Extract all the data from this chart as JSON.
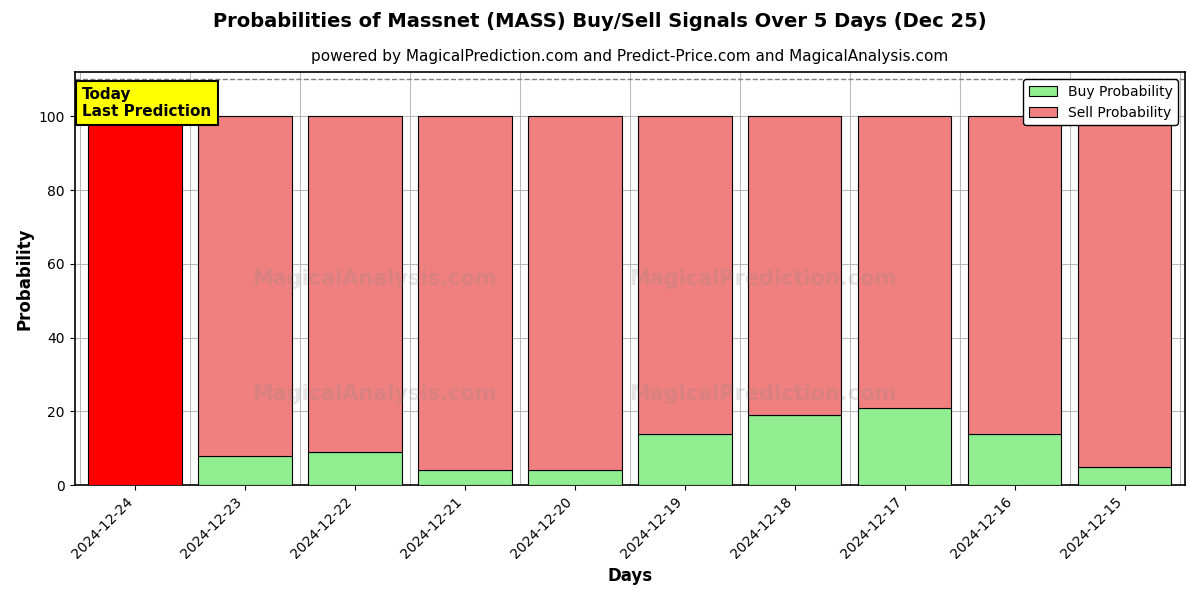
{
  "title": "Probabilities of Massnet (MASS) Buy/Sell Signals Over 5 Days (Dec 25)",
  "subtitle": "powered by MagicalPrediction.com and Predict-Price.com and MagicalAnalysis.com",
  "xlabel": "Days",
  "ylabel": "Probability",
  "categories": [
    "2024-12-24",
    "2024-12-23",
    "2024-12-22",
    "2024-12-21",
    "2024-12-20",
    "2024-12-19",
    "2024-12-18",
    "2024-12-17",
    "2024-12-16",
    "2024-12-15"
  ],
  "buy_values": [
    0,
    8,
    9,
    4,
    4,
    14,
    19,
    21,
    14,
    5
  ],
  "sell_values": [
    100,
    92,
    91,
    96,
    96,
    86,
    81,
    79,
    86,
    95
  ],
  "today_label": "Today\nLast Prediction",
  "today_index": 0,
  "buy_color_today": "#ff0000",
  "sell_color_today": "#ff0000",
  "buy_color_normal": "#90ee90",
  "sell_color_normal": "#f08080",
  "buy_legend_color": "#90ee90",
  "sell_legend_color": "#f08080",
  "today_box_color": "#ffff00",
  "ylim": [
    0,
    112
  ],
  "yticks": [
    0,
    20,
    40,
    60,
    80,
    100
  ],
  "dashed_line_y": 110,
  "background_color": "#ffffff",
  "grid_color": "#bbbbbb",
  "title_fontsize": 14,
  "subtitle_fontsize": 11,
  "axis_label_fontsize": 12,
  "tick_fontsize": 10,
  "legend_fontsize": 10,
  "bar_width": 0.85,
  "bar_edge_color": "#000000"
}
